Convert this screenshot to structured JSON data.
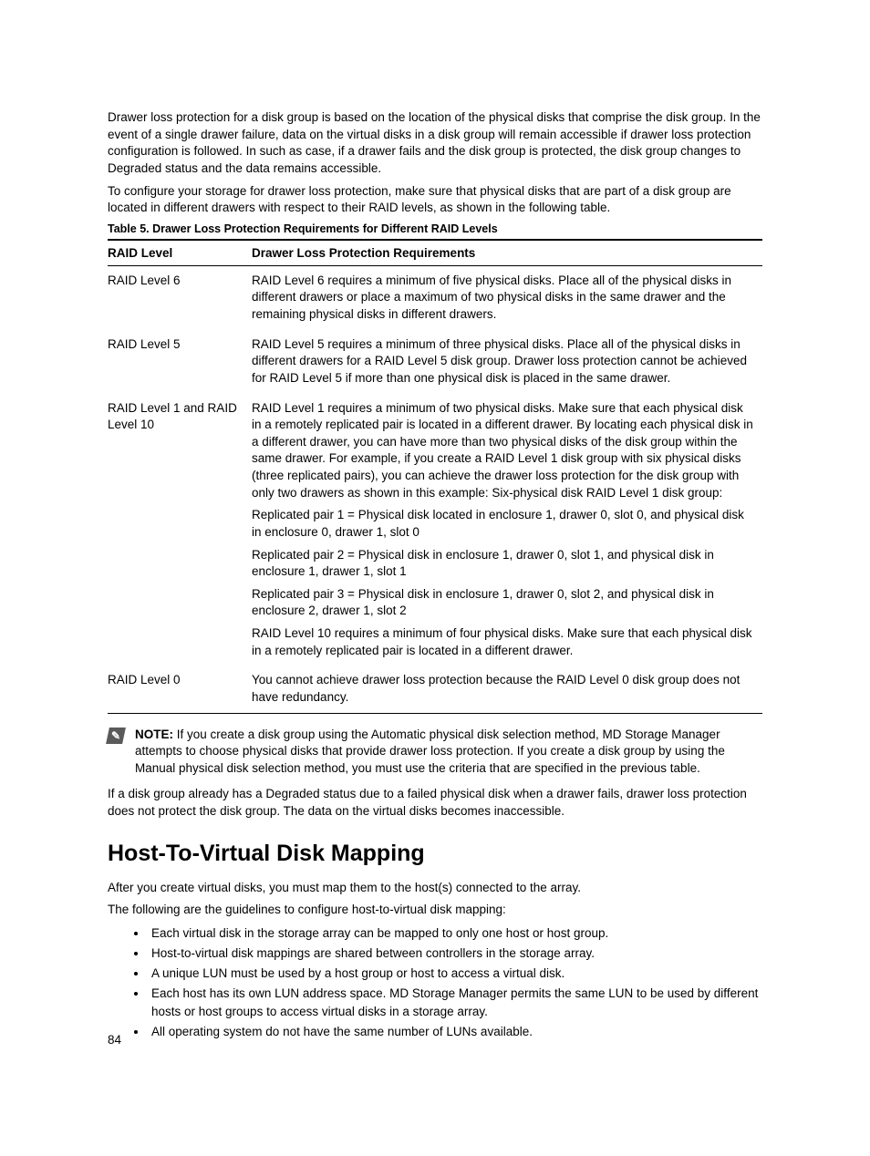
{
  "intro": {
    "p1": "Drawer loss protection for a disk group is based on the location of the physical disks that comprise the disk group. In the event of a single drawer failure, data on the virtual disks in a disk group will remain accessible if drawer loss protection configuration is followed. In such as case, if a drawer fails and the disk group is protected, the disk group changes to Degraded status and the data remains accessible.",
    "p2": "To configure your storage for drawer loss protection, make sure that physical disks that are part of a disk group are located in different drawers with respect to their RAID levels, as shown in the following table."
  },
  "table": {
    "caption": "Table 5. Drawer Loss Protection Requirements for Different RAID Levels",
    "headers": {
      "level": "RAID Level",
      "req": "Drawer Loss Protection Requirements"
    },
    "rows": [
      {
        "level": "RAID Level 6",
        "paras": [
          "RAID Level 6 requires a minimum of five physical disks. Place all of the physical disks in different drawers or place a maximum of two physical disks in the same drawer and the remaining physical disks in different drawers."
        ]
      },
      {
        "level": "RAID Level 5",
        "paras": [
          "RAID Level 5 requires a minimum of three physical disks. Place all of the physical disks in different drawers for a RAID Level 5 disk group. Drawer loss protection cannot be achieved for RAID Level 5 if more than one physical disk is placed in the same drawer."
        ]
      },
      {
        "level": "RAID Level 1 and RAID Level 10",
        "paras": [
          "RAID Level 1 requires a minimum of two physical disks. Make sure that each physical disk in a remotely replicated pair is located in a different drawer. By locating each physical disk in a different drawer, you can have more than two physical disks of the disk group within the same drawer. For example, if you create a RAID Level 1 disk group with six physical disks (three replicated pairs), you can achieve the drawer loss protection for the disk group with only two drawers as shown in this example: Six-physical disk RAID Level 1 disk group:",
          "Replicated pair 1 = Physical disk located in enclosure 1, drawer 0, slot 0, and physical disk in enclosure 0, drawer 1, slot 0",
          "Replicated pair 2 = Physical disk in enclosure 1, drawer 0, slot 1, and physical disk in enclosure 1, drawer 1, slot 1",
          "Replicated pair 3 = Physical disk in enclosure 1, drawer 0, slot 2, and physical disk in enclosure 2, drawer 1, slot 2",
          "RAID Level 10 requires a minimum of four physical disks. Make sure that each physical disk in a remotely replicated pair is located in a different drawer."
        ]
      },
      {
        "level": "RAID Level 0",
        "paras": [
          "You cannot achieve drawer loss protection because the RAID Level 0 disk group does not have redundancy."
        ]
      }
    ]
  },
  "note": {
    "label": "NOTE:",
    "text": " If you create a disk group using the Automatic physical disk selection method, MD Storage Manager attempts to choose physical disks that provide drawer loss protection. If you create a disk group by using the Manual physical disk selection method, you must use the criteria that are specified in the previous table."
  },
  "after_note": "If a disk group already has a Degraded status due to a failed physical disk when a drawer fails, drawer loss protection does not protect the disk group. The data on the virtual disks becomes inaccessible.",
  "section": {
    "heading": "Host-To-Virtual Disk Mapping",
    "p1": "After you create virtual disks, you must map them to the host(s) connected to the array.",
    "p2": "The following are the guidelines to configure host-to-virtual disk mapping:",
    "bullets": [
      "Each virtual disk in the storage array can be mapped to only one host or host group.",
      "Host-to-virtual disk mappings are shared between controllers in the storage array.",
      "A unique LUN must be used by a host group or host to access a virtual disk.",
      "Each host has its own LUN address space. MD Storage Manager permits the same LUN to be used by different hosts or host groups to access virtual disks in a storage array.",
      "All operating system do not have the same number of LUNs available."
    ]
  },
  "page_number": "84"
}
